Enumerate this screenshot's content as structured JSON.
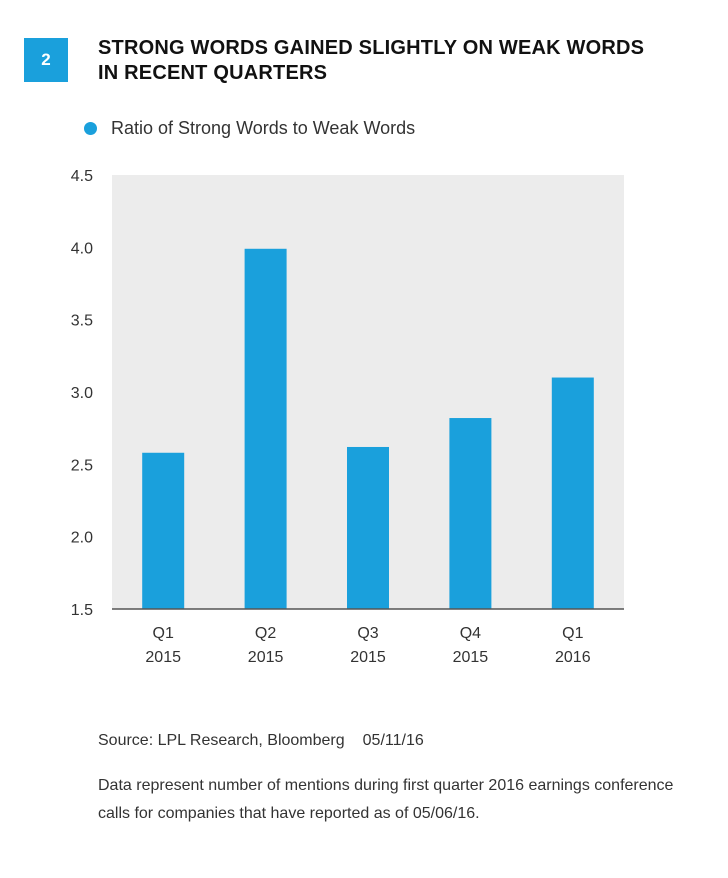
{
  "figure": {
    "number": "2",
    "title_line1": "STRONG WORDS GAINED SLIGHTLY ON WEAK WORDS",
    "title_line2": "IN RECENT QUARTERS"
  },
  "colors": {
    "accent": "#1aa0dc",
    "plot_background": "#ececec"
  },
  "chart_data": {
    "type": "bar",
    "categories": [
      {
        "line1": "Q1",
        "line2": "2015"
      },
      {
        "line1": "Q2",
        "line2": "2015"
      },
      {
        "line1": "Q3",
        "line2": "2015"
      },
      {
        "line1": "Q4",
        "line2": "2015"
      },
      {
        "line1": "Q1",
        "line2": "2016"
      }
    ],
    "series": [
      {
        "name": "Ratio of Strong Words to Weak Words",
        "values": [
          2.58,
          3.99,
          2.62,
          2.82,
          3.1
        ]
      }
    ],
    "ylim": [
      1.5,
      4.5
    ],
    "yticks": [
      "1.5",
      "2.0",
      "2.5",
      "3.0",
      "3.5",
      "4.0",
      "4.5"
    ],
    "grid": false,
    "legend_position": "top-left"
  },
  "footer": {
    "source": "Source: LPL Research, Bloomberg",
    "date": "05/11/16",
    "note": "Data represent number of mentions during first quarter 2016 earnings conference calls for companies that have reported as of 05/06/16."
  }
}
